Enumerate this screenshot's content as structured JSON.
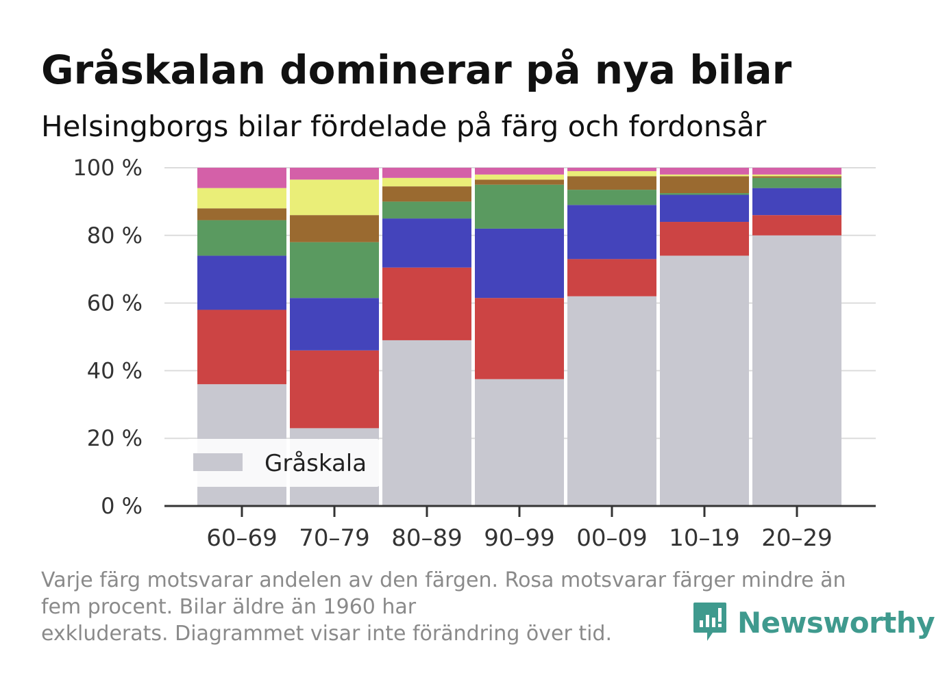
{
  "title": "Gråskalan dominerar på nya bilar",
  "subtitle": "Helsingborgs bilar fördelade på färg och fordonsår",
  "footnote": "Varje färg motsvarar andelen av den färgen. Rosa motsvarar färger mindre än\nfem procent. Bilar äldre än 1960 har\nexkluderats. Diagrammet visar inte förändring över tid.",
  "brand": "Newsworthy",
  "legend": {
    "label": "Gråskala"
  },
  "chart_data": {
    "type": "bar",
    "stacked": true,
    "categories": [
      "60–69",
      "70–79",
      "80–89",
      "90–99",
      "00–09",
      "10–19",
      "20–29"
    ],
    "yticks": [
      "0 %",
      "20 %",
      "40 %",
      "60 %",
      "80 %",
      "100 %"
    ],
    "ylim": [
      0,
      100
    ],
    "grid": true,
    "legend_position": "bottom-left",
    "series": [
      {
        "name": "Gråskala",
        "color": "#c8c8d0",
        "values": [
          36,
          23,
          49,
          37.5,
          62,
          74,
          80
        ]
      },
      {
        "color": "#cc4444",
        "values": [
          22,
          23,
          21.5,
          24,
          11,
          10,
          6
        ]
      },
      {
        "color": "#4444bb",
        "values": [
          16,
          15.5,
          14.5,
          20.5,
          16,
          8,
          8
        ]
      },
      {
        "color": "#5a9a60",
        "values": [
          10.5,
          16.5,
          5,
          13,
          4.5,
          0.5,
          3
        ]
      },
      {
        "color": "#9a6a30",
        "values": [
          3.5,
          8,
          4.5,
          1.5,
          4,
          5,
          0.5
        ]
      },
      {
        "color": "#eaee78",
        "values": [
          6,
          10.5,
          2.5,
          1.5,
          1.5,
          0.5,
          0.5
        ]
      },
      {
        "color": "#d460a8",
        "values": [
          6,
          3.5,
          3,
          2,
          1,
          2,
          2
        ]
      }
    ]
  }
}
